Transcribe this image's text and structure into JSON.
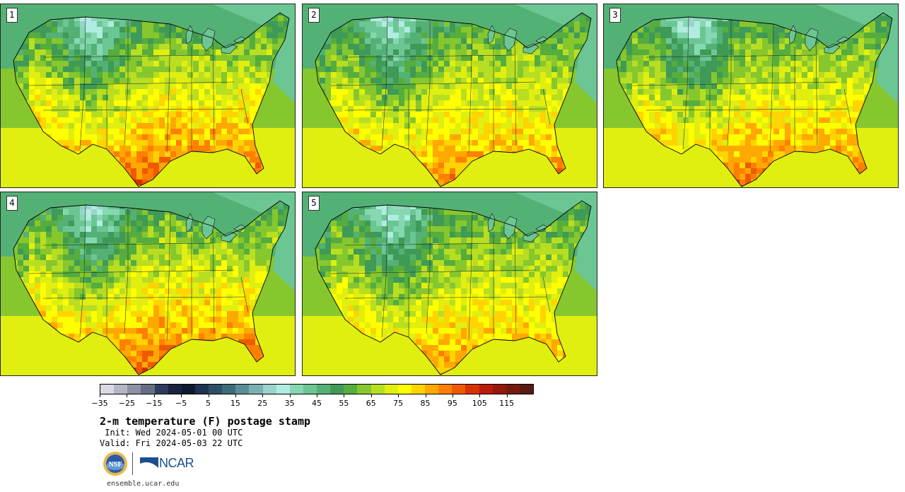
{
  "panels": [
    {
      "label": "1",
      "heat": 1.0
    },
    {
      "label": "2",
      "heat": 0.9
    },
    {
      "label": "3",
      "heat": 0.95
    },
    {
      "label": "4",
      "heat": 1.0
    },
    {
      "label": "5",
      "heat": 0.85
    }
  ],
  "colorbar": {
    "colors": [
      "#d9dbe3",
      "#b3b7c4",
      "#8c92a4",
      "#666e85",
      "#2f3b5c",
      "#1a2440",
      "#0c1a30",
      "#1f3350",
      "#2e4d66",
      "#3d6b7a",
      "#5a8c95",
      "#7bb0b0",
      "#9ad3cc",
      "#b0ecdf",
      "#85d8b0",
      "#6cc694",
      "#54b176",
      "#3f9a58",
      "#55ad3d",
      "#86c72e",
      "#b8de22",
      "#e0ee10",
      "#ffff00",
      "#ffd400",
      "#ffa800",
      "#ff7f00",
      "#ef5a00",
      "#d93000",
      "#b81c0a",
      "#95180c",
      "#741a10",
      "#5a1a12"
    ],
    "tick_labels": [
      "−35",
      "−25",
      "−15",
      "−5",
      "5",
      "15",
      "25",
      "35",
      "45",
      "55",
      "65",
      "75",
      "85",
      "95",
      "105",
      "115"
    ]
  },
  "title": "2-m temperature (F) postage stamp",
  "init": " Init: Wed 2024-05-01 00 UTC",
  "valid": "Valid: Fri 2024-05-03 22 UTC",
  "logos": {
    "nsf": "NSF",
    "ncar": "NCAR"
  },
  "url": "ensemble.ucar.edu"
}
